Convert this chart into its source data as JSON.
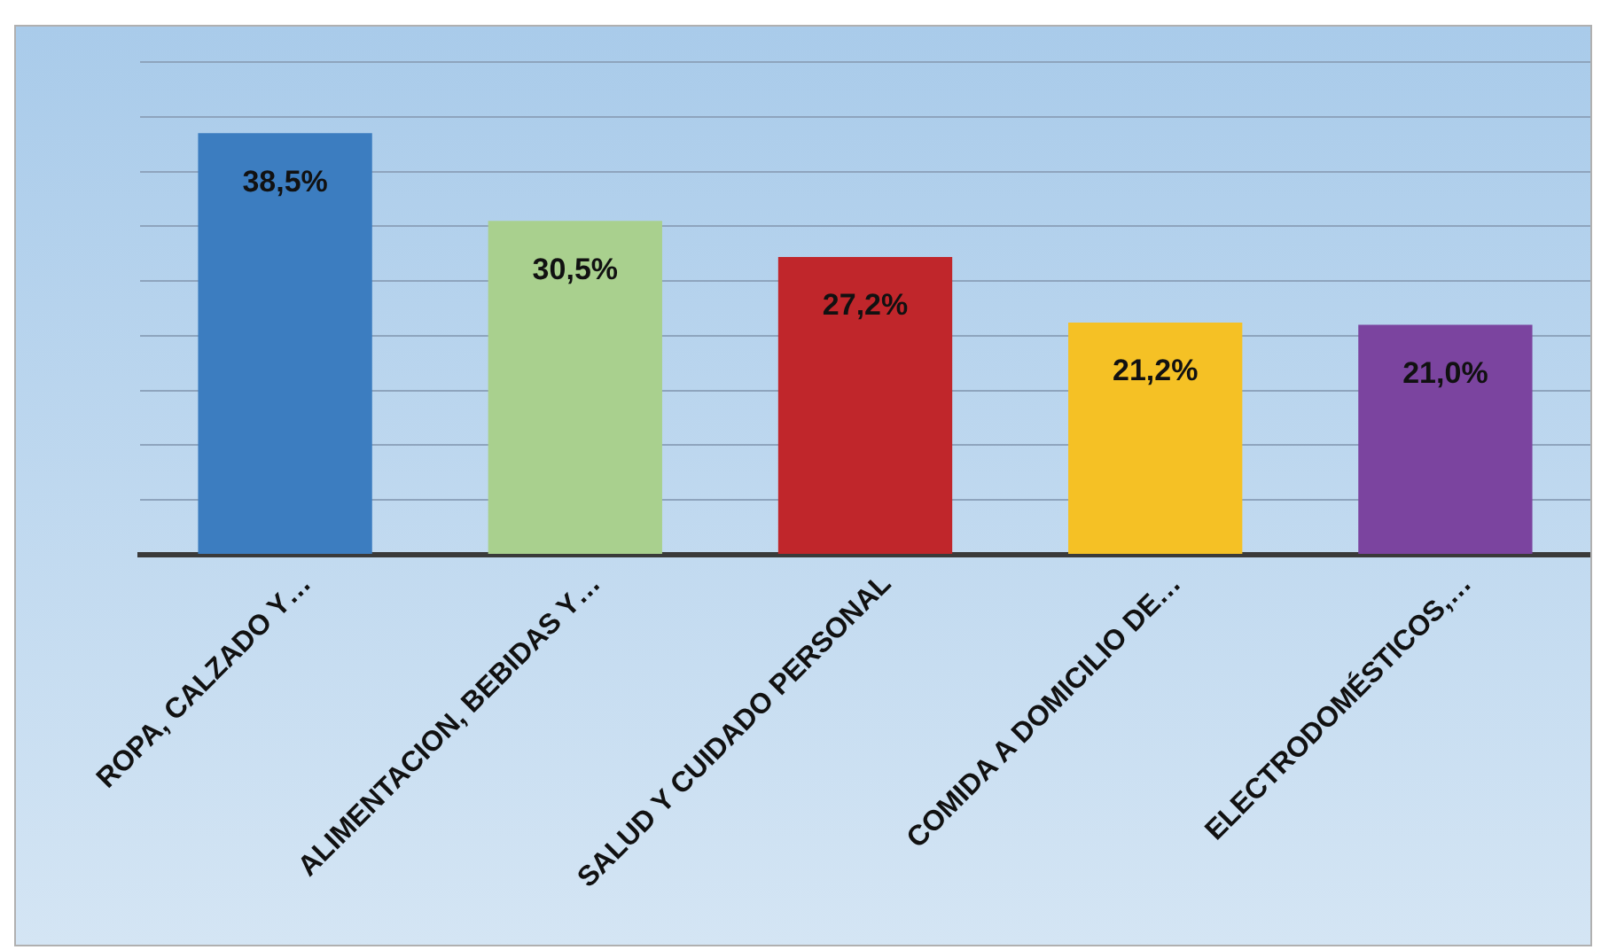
{
  "chart_data": {
    "type": "bar",
    "categories": [
      "ROPA, CALZADO Y…",
      "ALIMENTACION, BEBIDAS Y…",
      "SALUD Y CUIDADO PERSONAL",
      "COMIDA A DOMICILIO DE…",
      "ELECTRODOMÉSTICOS,…"
    ],
    "values": [
      38.5,
      30.5,
      27.2,
      21.2,
      21.0
    ],
    "colors": [
      "#3c7dc0",
      "#a9d08e",
      "#c0262b",
      "#f5c125",
      "#7b449f"
    ],
    "value_labels": [
      "38,5%",
      "30,5%",
      "27,2%",
      "21,2%",
      "21,0%"
    ],
    "ylim": [
      0,
      45
    ],
    "yticks": [
      {
        "value": 0,
        "label": null
      },
      {
        "value": 5,
        "label": null
      },
      {
        "value": 10,
        "label": null
      },
      {
        "value": 15,
        "label": null
      },
      {
        "value": 20,
        "label": null
      },
      {
        "value": 25,
        "label": null
      },
      {
        "value": 30,
        "label": null
      },
      {
        "value": 35,
        "label": null
      },
      {
        "value": 40,
        "label": null
      },
      {
        "value": 45,
        "label": null
      }
    ],
    "grid": "y",
    "tick_labels": "x",
    "legend": false
  }
}
